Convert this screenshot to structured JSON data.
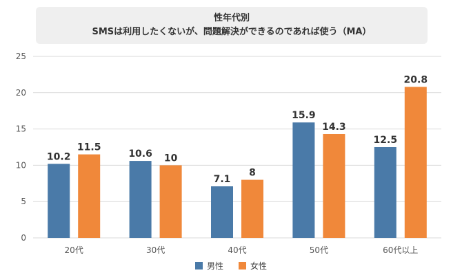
{
  "chart_data": {
    "type": "bar",
    "title": "性年代別",
    "subtitle": "SMSは利用したくないが、問題解決ができるのであれば使う（MA）",
    "categories": [
      "20代",
      "30代",
      "40代",
      "50代",
      "60代以上"
    ],
    "series": [
      {
        "name": "男性",
        "color": "#4a7aa8",
        "values": [
          10.2,
          10.6,
          7.1,
          15.9,
          12.5
        ]
      },
      {
        "name": "女性",
        "color": "#f0883a",
        "values": [
          11.5,
          10,
          8,
          14.3,
          20.8
        ]
      }
    ],
    "y_ticks": [
      "0",
      "5",
      "10",
      "15",
      "20",
      "25"
    ],
    "ylim": [
      0,
      25
    ],
    "grid": true,
    "legend_position": "bottom"
  }
}
